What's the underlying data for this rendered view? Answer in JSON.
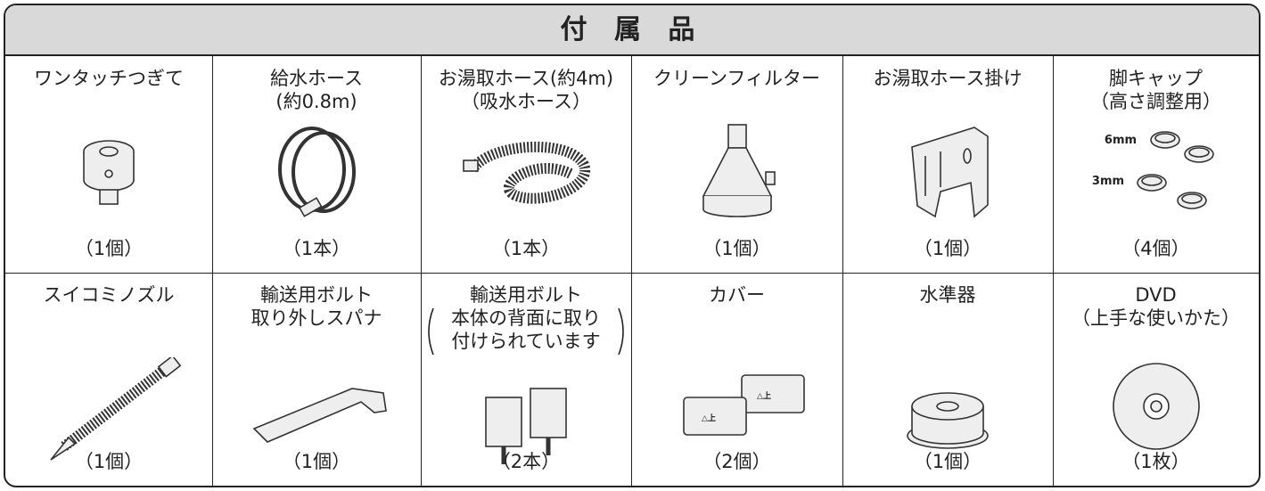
{
  "header": {
    "title": "付 属 品"
  },
  "items": [
    {
      "name": [
        "ワンタッチつぎて"
      ],
      "count": "（1個）"
    },
    {
      "name": [
        "給水ホース",
        "(約0.8m)"
      ],
      "count": "（1本）"
    },
    {
      "name": [
        "お湯取ホース(約4m)",
        "（吸水ホース）"
      ],
      "count": "（1本）"
    },
    {
      "name": [
        "クリーンフィルター"
      ],
      "count": "（1個）"
    },
    {
      "name": [
        "お湯取ホース掛け"
      ],
      "count": "（1個）"
    },
    {
      "name": [
        "脚キャップ",
        "（高さ調整用）"
      ],
      "labels": [
        "6mm",
        "3mm"
      ],
      "count": "（4個）"
    },
    {
      "name": [
        "スイコミノズル"
      ],
      "count": "（1個）"
    },
    {
      "name": [
        "輸送用ボルト",
        "取り外しスパナ"
      ],
      "count": "（1個）"
    },
    {
      "name": [
        "輸送用ボルト"
      ],
      "note": [
        "本体の背面に取り",
        "付けられています"
      ],
      "count": "（2本）"
    },
    {
      "name": [
        "カバー"
      ],
      "labels": [
        "△上",
        "△上"
      ],
      "count": "（2個）"
    },
    {
      "name": [
        "水準器"
      ],
      "count": "（1個）"
    },
    {
      "name": [
        "DVD",
        "（上手な使いかた）"
      ],
      "count": "（1枚）"
    }
  ]
}
